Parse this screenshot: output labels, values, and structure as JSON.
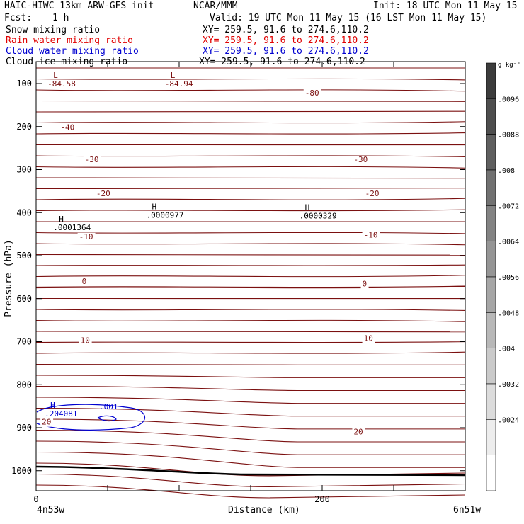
{
  "header": {
    "model": "HAIC-HIWC 13km ARW-GFS init",
    "org": "NCAR/MMM",
    "init": "Init: 18 UTC Mon 11 May 15",
    "fcst_label": "Fcst:",
    "fcst_value": "1 h",
    "valid": "Valid: 19 UTC Mon 11 May 15 (16 LST Mon 11 May 15)"
  },
  "fields": [
    {
      "name": "Snow mixing ratio",
      "xy": "XY= 259.5, 91.6 to 274.6,110.2",
      "color": "#000000"
    },
    {
      "name": "Rain water mixing ratio",
      "xy": "XY= 259.5, 91.6 to 274.6,110.2",
      "color": "#e00000"
    },
    {
      "name": "Cloud water mixing ratio",
      "xy": "XY= 259.5, 91.6 to 274.6,110.2",
      "color": "#0000d0"
    },
    {
      "name": "Cloud ice mixing ratio",
      "xy": "XY= 259.5, 91.6 to 274.6,110.2",
      "color": "#000000"
    }
  ],
  "chart_data": {
    "type": "contour",
    "ylabel": "Pressure (hPa)",
    "xlabel": "Distance (km)",
    "x_start_label": "4n53w",
    "x_end_label": "6n51w",
    "xlim": [
      0,
      300
    ],
    "ylim": [
      50,
      1030
    ],
    "y_ticks": [
      100,
      200,
      300,
      400,
      500,
      600,
      700,
      800,
      900,
      1000
    ],
    "x_ticks": [
      0,
      200
    ],
    "x_minor_ticks": [
      0,
      50,
      100,
      150,
      200,
      250,
      300
    ],
    "temperature_contours": {
      "color": "#7b1010",
      "interval": 5,
      "labels": [
        {
          "text": "-80",
          "x": 188,
          "p": 128
        },
        {
          "text": "-40",
          "x": 17,
          "p": 208
        },
        {
          "text": "-30",
          "x": 34,
          "p": 283
        },
        {
          "text": "-30",
          "x": 222,
          "p": 283
        },
        {
          "text": "-20",
          "x": 42,
          "p": 362
        },
        {
          "text": "-20",
          "x": 230,
          "p": 362
        },
        {
          "text": "-10",
          "x": 229,
          "p": 458
        },
        {
          "text": "-10",
          "x": 30,
          "p": 462
        },
        {
          "text": "0",
          "x": 32,
          "p": 566
        },
        {
          "text": "0",
          "x": 228,
          "p": 572
        },
        {
          "text": "10",
          "x": 31,
          "p": 703
        },
        {
          "text": "10",
          "x": 229,
          "p": 698
        },
        {
          "text": "20",
          "x": 222,
          "p": 916
        },
        {
          "text": "20",
          "x": 4,
          "p": 893
        }
      ]
    },
    "extrema": [
      {
        "type": "L",
        "value": "-84.58",
        "x": 8,
        "p": 100
      },
      {
        "type": "L",
        "value": "-84.94",
        "x": 90,
        "p": 100
      },
      {
        "type": "H",
        "value": ".0000977",
        "x": 77,
        "p": 405
      },
      {
        "type": "H",
        "value": ".0000329",
        "x": 184,
        "p": 407
      },
      {
        "type": "H",
        "value": ".0001364",
        "x": 12,
        "p": 434
      },
      {
        "type": "H",
        "value": ".204081",
        "x": 6,
        "p": 867
      }
    ],
    "cloud_water_contour": {
      "label": ".001",
      "color": "#0000d0"
    },
    "colorbar": {
      "units": "g kg⁻¹",
      "ticks": [
        ".0096",
        ".0088",
        ".008",
        ".0072",
        ".0064",
        ".0056",
        ".0048",
        ".004",
        ".0032",
        ".0024"
      ]
    }
  }
}
